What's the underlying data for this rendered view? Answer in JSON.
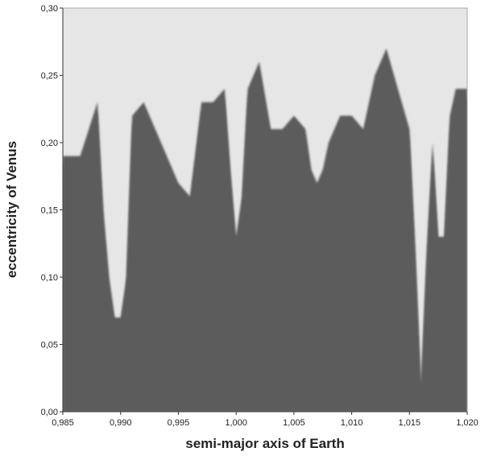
{
  "chart_data": {
    "type": "heatmap",
    "title": "",
    "xlabel": "semi-major axis of Earth",
    "ylabel": "eccentricity of Venus",
    "xlim": [
      0.985,
      1.02
    ],
    "ylim": [
      0.0,
      0.3
    ],
    "x_ticks": [
      "0,985",
      "0,990",
      "0,995",
      "1,000",
      "1,005",
      "1,010",
      "1,015",
      "1,020"
    ],
    "y_ticks": [
      "0,00",
      "0,05",
      "0,10",
      "0,15",
      "0,20",
      "0,25",
      "0,30"
    ],
    "grid": false,
    "legend": "none",
    "colors": {
      "level0": "#5b5b5b",
      "level1": "#8a8a8a",
      "level2": "#a9a9a9",
      "level3": "#c6c6c6",
      "level4": "#e6e6e6"
    },
    "boundary_x": [
      0.985,
      0.9865,
      0.988,
      0.9885,
      0.989,
      0.9895,
      0.99,
      0.9905,
      0.991,
      0.992,
      0.993,
      0.994,
      0.995,
      0.996,
      0.997,
      0.998,
      0.999,
      0.9995,
      1.0,
      1.0005,
      1.001,
      1.002,
      1.003,
      1.004,
      1.005,
      1.006,
      1.0065,
      1.007,
      1.0075,
      1.008,
      1.009,
      1.01,
      1.011,
      1.012,
      1.013,
      1.014,
      1.015,
      1.0155,
      1.016,
      1.0165,
      1.017,
      1.0175,
      1.018,
      1.0185,
      1.019,
      1.02
    ],
    "boundary_eccentricity": [
      0.19,
      0.19,
      0.23,
      0.15,
      0.1,
      0.07,
      0.07,
      0.1,
      0.22,
      0.23,
      0.21,
      0.19,
      0.17,
      0.16,
      0.23,
      0.23,
      0.24,
      0.18,
      0.13,
      0.16,
      0.24,
      0.26,
      0.21,
      0.21,
      0.22,
      0.21,
      0.18,
      0.17,
      0.18,
      0.2,
      0.22,
      0.22,
      0.21,
      0.25,
      0.27,
      0.24,
      0.21,
      0.12,
      0.02,
      0.12,
      0.2,
      0.13,
      0.13,
      0.22,
      0.24,
      0.24
    ]
  }
}
